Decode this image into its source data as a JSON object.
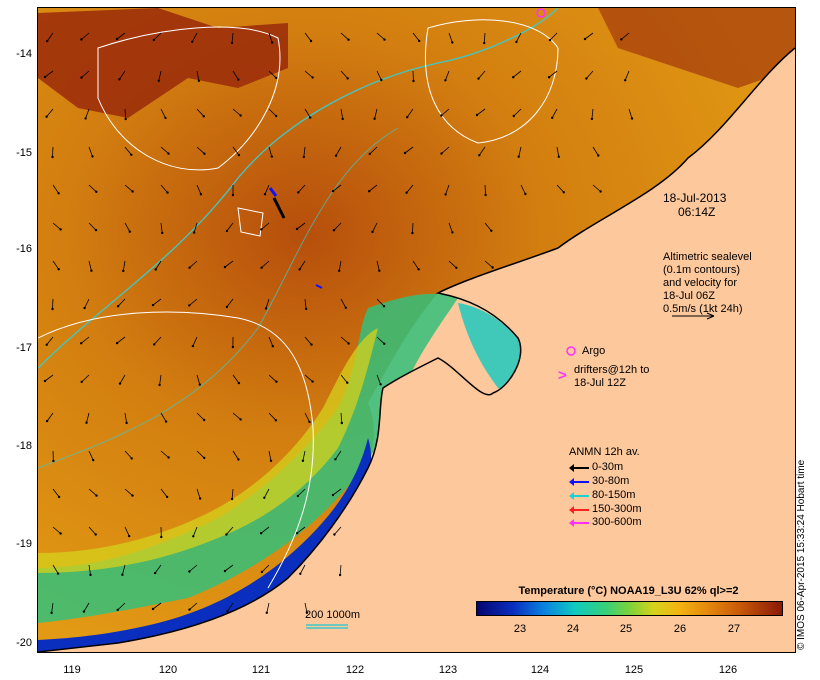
{
  "map": {
    "lat_ticks": [
      "-14",
      "-15",
      "-16",
      "-17",
      "-18",
      "-19",
      "-20"
    ],
    "lon_ticks": [
      "119",
      "120",
      "121",
      "122",
      "123",
      "124",
      "125",
      "126"
    ],
    "lat_range": [
      -20.1,
      -13.65
    ],
    "lon_range": [
      118.65,
      126.7
    ]
  },
  "annotations": {
    "timestamp_date": "18-Jul-2013",
    "timestamp_time": "06:14Z",
    "altimetry_lines": [
      "Altimetric sealevel",
      "(0.1m contours)",
      "and velocity for",
      "18-Jul 06Z",
      "0.5m/s (1kt 24h)"
    ],
    "argo_label": "Argo",
    "drifter_line1": "drifters@12h to",
    "drifter_line2": "18-Jul 12Z",
    "isobath_label": "200  1000m"
  },
  "anmn_legend": {
    "title": "ANMN 12h av.",
    "items": [
      {
        "label": "0-30m",
        "color": "#000000"
      },
      {
        "label": "30-80m",
        "color": "#1010ff"
      },
      {
        "label": "80-150m",
        "color": "#20d0d0"
      },
      {
        "label": "150-300m",
        "color": "#ff2020"
      },
      {
        "label": "300-600m",
        "color": "#ff30ff"
      }
    ]
  },
  "colorbar": {
    "title": "Temperature (°C) NOAA19_L3U 62% ql>=2",
    "ticks": [
      "23",
      "24",
      "25",
      "26",
      "27"
    ]
  },
  "side_note": "© IMOS 06-Apr-2015 15:33:24 Hobart time",
  "colors": {
    "land": "#fdc89c",
    "warm_sst": "#d9820f",
    "hot_sst": "#9a2a0a",
    "cool_sst": "#0a2fbf",
    "isobath": "#40c8c8",
    "argo": "#ff30ff"
  }
}
